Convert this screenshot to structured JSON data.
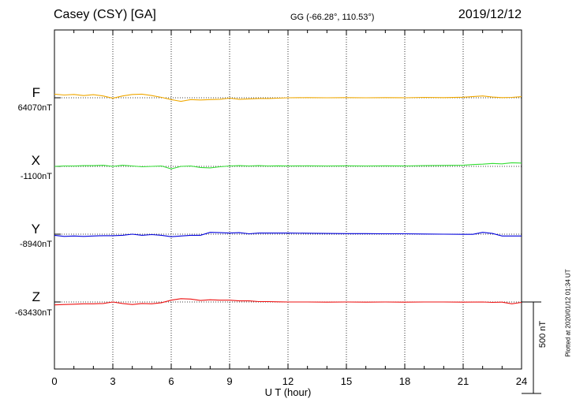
{
  "header": {
    "station": "Casey (CSY)  [GA]",
    "coords": "GG (-66.28°, 110.53°)",
    "date": "2019/12/12"
  },
  "plotted_note": "Plotted at 2020/01/12 01:34 UT",
  "scale_bar_label": "500 nT",
  "chart_data": {
    "type": "line",
    "title": "Casey (CSY)  [GA]",
    "xlabel": "U T (hour)",
    "xlim": [
      0,
      24
    ],
    "xticks": [
      0,
      3,
      6,
      9,
      12,
      15,
      18,
      21,
      24
    ],
    "grid": true,
    "scale_bar_nT": 500,
    "series": [
      {
        "name": "F",
        "baseline_label": "64070nT",
        "baseline": 64070,
        "color": "#f0a800",
        "x": [
          0,
          0.5,
          1,
          1.5,
          2,
          2.5,
          3,
          3.5,
          4,
          4.5,
          5,
          5.5,
          6,
          6.5,
          7,
          7.5,
          8,
          8.5,
          9,
          9.5,
          10,
          10.5,
          11,
          11.5,
          12,
          13,
          14,
          15,
          16,
          17,
          18,
          19,
          20,
          21,
          22,
          22.5,
          23,
          23.5,
          24
        ],
        "y": [
          64090,
          64085,
          64088,
          64082,
          64087,
          64080,
          64068,
          64080,
          64088,
          64090,
          64082,
          64072,
          64060,
          64050,
          64060,
          64058,
          64060,
          64062,
          64068,
          64062,
          64064,
          64066,
          64066,
          64068,
          64070,
          64071,
          64070,
          64071,
          64070,
          64071,
          64070,
          64072,
          64071,
          64073,
          64080,
          64074,
          64071,
          64072,
          64076
        ]
      },
      {
        "name": "X",
        "baseline_label": "-1100nT",
        "baseline": -1100,
        "color": "#33dd33",
        "x": [
          0,
          0.5,
          1,
          1.5,
          2,
          2.5,
          3,
          3.5,
          4,
          4.5,
          5,
          5.5,
          6,
          6.5,
          7,
          7.5,
          8,
          8.5,
          9,
          9.5,
          10,
          10.5,
          11,
          11.5,
          12,
          13,
          14,
          15,
          16,
          17,
          18,
          19,
          20,
          21,
          21.5,
          22,
          22.5,
          23,
          23.5,
          24
        ],
        "y": [
          -1100,
          -1098,
          -1098,
          -1096,
          -1096,
          -1094,
          -1100,
          -1094,
          -1098,
          -1102,
          -1100,
          -1098,
          -1114,
          -1100,
          -1098,
          -1106,
          -1108,
          -1102,
          -1098,
          -1096,
          -1098,
          -1096,
          -1098,
          -1097,
          -1098,
          -1097,
          -1098,
          -1097,
          -1098,
          -1097,
          -1098,
          -1096,
          -1095,
          -1094,
          -1090,
          -1088,
          -1084,
          -1086,
          -1080,
          -1082
        ]
      },
      {
        "name": "Y",
        "baseline_label": "-8940nT",
        "baseline": -8940,
        "color": "#0000dd",
        "x": [
          0,
          0.5,
          1,
          1.5,
          2,
          2.5,
          3,
          3.5,
          4,
          4.5,
          5,
          5.5,
          6,
          6.5,
          7,
          7.5,
          8,
          8.5,
          9,
          9.5,
          10,
          10.5,
          11,
          11.5,
          12,
          13,
          14,
          15,
          16,
          17,
          18,
          19,
          20,
          21,
          21.5,
          22,
          22.5,
          23,
          23.5,
          24
        ],
        "y": [
          -8946,
          -8952,
          -8950,
          -8952,
          -8950,
          -8948,
          -8948,
          -8946,
          -8940,
          -8946,
          -8942,
          -8946,
          -8954,
          -8950,
          -8946,
          -8946,
          -8930,
          -8932,
          -8934,
          -8932,
          -8938,
          -8934,
          -8934,
          -8934,
          -8934,
          -8935,
          -8936,
          -8937,
          -8937,
          -8938,
          -8938,
          -8939,
          -8940,
          -8941,
          -8941,
          -8930,
          -8936,
          -8950,
          -8950,
          -8950
        ]
      },
      {
        "name": "Z",
        "baseline_label": "-63430nT",
        "baseline": -63430,
        "color": "#ee1111",
        "x": [
          0,
          0.5,
          1,
          1.5,
          2,
          2.5,
          3,
          3.5,
          4,
          4.5,
          5,
          5.5,
          6,
          6.5,
          7,
          7.5,
          8,
          8.5,
          9,
          9.5,
          10,
          10.5,
          11,
          11.5,
          12,
          13,
          14,
          15,
          16,
          17,
          18,
          19,
          20,
          21,
          22,
          22.5,
          23,
          23.5,
          24
        ],
        "y": [
          -63446,
          -63444,
          -63442,
          -63440,
          -63440,
          -63438,
          -63430,
          -63438,
          -63444,
          -63438,
          -63440,
          -63434,
          -63420,
          -63412,
          -63414,
          -63422,
          -63418,
          -63420,
          -63420,
          -63424,
          -63424,
          -63428,
          -63428,
          -63429,
          -63430,
          -63430,
          -63431,
          -63430,
          -63431,
          -63430,
          -63431,
          -63430,
          -63430,
          -63431,
          -63430,
          -63432,
          -63431,
          -63440,
          -63432
        ]
      }
    ]
  }
}
